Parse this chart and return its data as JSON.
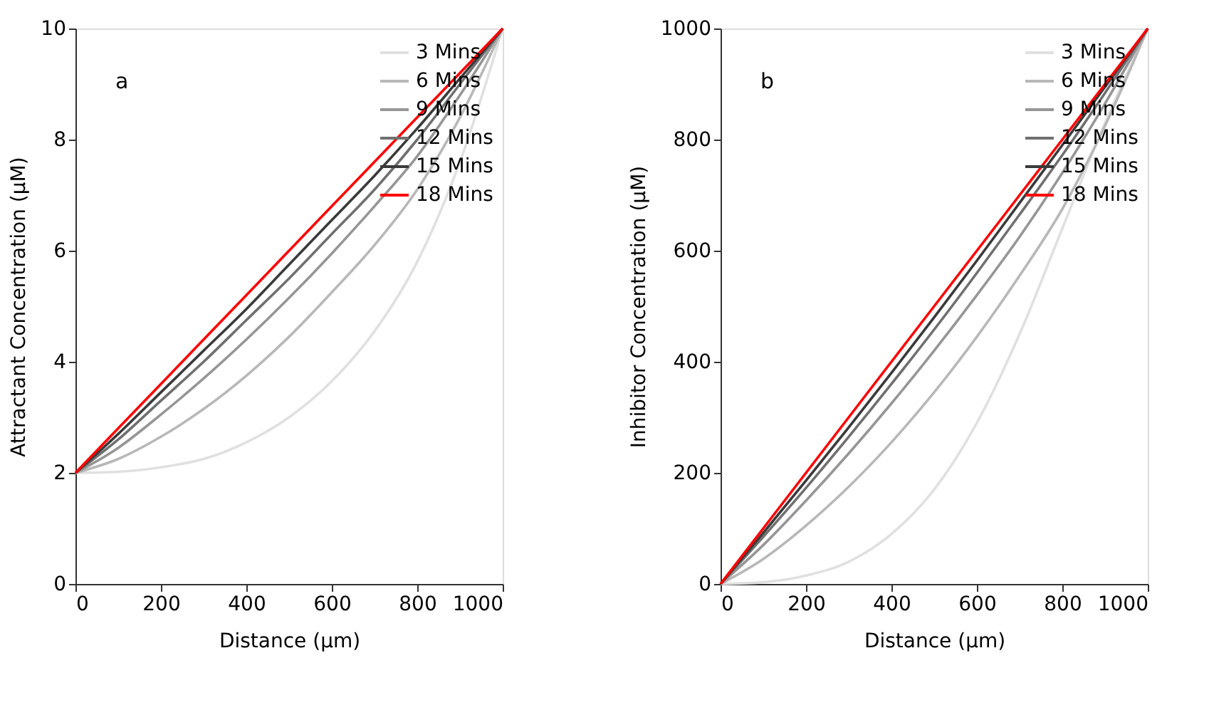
{
  "chart_data": [
    {
      "type": "line",
      "xlabel": "Distance (µm)",
      "ylabel": "Attractant Concentration (µM)",
      "annotations": [
        "a"
      ],
      "x": [
        0,
        100,
        200,
        300,
        400,
        500,
        600,
        700,
        800,
        900,
        1000
      ],
      "xlim": [
        0,
        1000
      ],
      "xticks": [
        0,
        200,
        400,
        600,
        800,
        1000
      ],
      "ylim": [
        0,
        10
      ],
      "yticks": [
        0,
        2,
        4,
        6,
        8,
        10
      ],
      "grid": false,
      "legend": "top right",
      "marker": "none",
      "line_style": "solid",
      "series": [
        {
          "name": "3 Mins",
          "color": "#e0e0e0",
          "values": [
            2,
            2.02,
            2.1,
            2.25,
            2.55,
            3.0,
            3.65,
            4.55,
            5.8,
            7.6,
            10
          ]
        },
        {
          "name": "6 Mins",
          "color": "#b8b8b8",
          "values": [
            2,
            2.25,
            2.65,
            3.15,
            3.75,
            4.45,
            5.25,
            6.1,
            7.1,
            8.4,
            10
          ]
        },
        {
          "name": "9 Mins",
          "color": "#969696",
          "values": [
            2,
            2.45,
            3.05,
            3.7,
            4.4,
            5.15,
            5.95,
            6.8,
            7.7,
            8.8,
            10
          ]
        },
        {
          "name": "12 Mins",
          "color": "#707070",
          "values": [
            2,
            2.6,
            3.3,
            4.0,
            4.75,
            5.5,
            6.3,
            7.1,
            8.0,
            9.0,
            10
          ]
        },
        {
          "name": "15 Mins",
          "color": "#3a3a3a",
          "values": [
            2,
            2.7,
            3.45,
            4.2,
            4.95,
            5.75,
            6.55,
            7.35,
            8.2,
            9.1,
            10
          ]
        },
        {
          "name": "18 Mins",
          "color": "#ff0000",
          "values": [
            2,
            2.8,
            3.6,
            4.4,
            5.2,
            6.0,
            6.8,
            7.6,
            8.4,
            9.2,
            10
          ]
        }
      ]
    },
    {
      "type": "line",
      "xlabel": "Distance (µm)",
      "ylabel": "Inhibitor Concentration (µM)",
      "annotations": [
        "b"
      ],
      "x": [
        0,
        100,
        200,
        300,
        400,
        500,
        600,
        700,
        800,
        900,
        1000
      ],
      "xlim": [
        0,
        1000
      ],
      "xticks": [
        0,
        200,
        400,
        600,
        800,
        1000
      ],
      "ylim": [
        0,
        1000
      ],
      "yticks": [
        0,
        200,
        400,
        600,
        800,
        1000
      ],
      "grid": false,
      "legend": "top right",
      "marker": "none",
      "line_style": "solid",
      "series": [
        {
          "name": "3 Mins",
          "color": "#e0e0e0",
          "values": [
            0,
            3,
            15,
            40,
            90,
            170,
            290,
            450,
            640,
            830,
            1000
          ]
        },
        {
          "name": "6 Mins",
          "color": "#b8b8b8",
          "values": [
            0,
            45,
            105,
            175,
            255,
            345,
            445,
            555,
            675,
            825,
            1000
          ]
        },
        {
          "name": "9 Mins",
          "color": "#969696",
          "values": [
            0,
            70,
            150,
            235,
            325,
            420,
            520,
            625,
            740,
            865,
            1000
          ]
        },
        {
          "name": "12 Mins",
          "color": "#707070",
          "values": [
            0,
            85,
            173,
            265,
            360,
            458,
            560,
            665,
            772,
            884,
            1000
          ]
        },
        {
          "name": "15 Mins",
          "color": "#3a3a3a",
          "values": [
            0,
            92,
            186,
            282,
            380,
            480,
            582,
            686,
            790,
            895,
            1000
          ]
        },
        {
          "name": "18 Mins",
          "color": "#ff0000",
          "values": [
            0,
            100,
            200,
            300,
            400,
            500,
            600,
            700,
            800,
            900,
            1000
          ]
        }
      ]
    }
  ]
}
